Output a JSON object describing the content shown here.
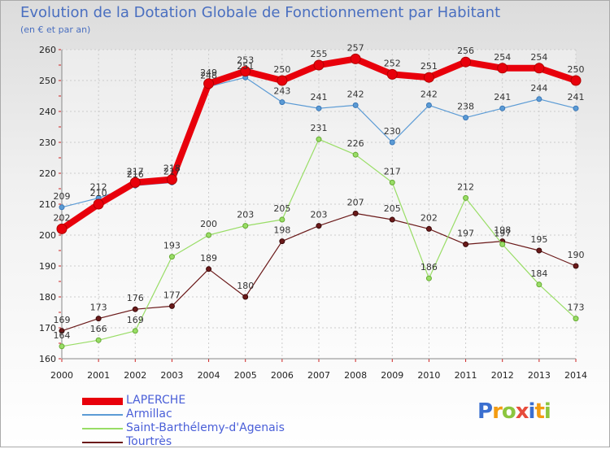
{
  "chart_data": {
    "type": "line",
    "title": "Evolution de la Dotation Globale de Fonctionnement par Habitant",
    "subtitle": "(en € et par an)",
    "xlabel": "",
    "ylabel": "",
    "x": [
      "2000",
      "2001",
      "2002",
      "2003",
      "2004",
      "2005",
      "2006",
      "2007",
      "2008",
      "2009",
      "2010",
      "2011",
      "2012",
      "2013",
      "2014"
    ],
    "ylim": [
      160,
      260
    ],
    "yticks": [
      160,
      170,
      180,
      190,
      200,
      210,
      220,
      230,
      240,
      250,
      260
    ],
    "grid": true,
    "legend_position": "bottom-left",
    "series": [
      {
        "name": "LAPERCHE",
        "color": "#e8000b",
        "values": [
          202,
          210,
          217,
          218,
          249,
          253,
          250,
          255,
          257,
          252,
          251,
          256,
          254,
          254,
          250
        ]
      },
      {
        "name": "Armillac",
        "color": "#5b9bd5",
        "values": [
          209,
          212,
          216,
          217,
          248,
          251,
          243,
          241,
          242,
          230,
          242,
          238,
          241,
          244,
          241
        ]
      },
      {
        "name": "Saint-Barthélemy-d'Agenais",
        "color": "#99dd66",
        "values": [
          164,
          166,
          169,
          193,
          200,
          203,
          205,
          231,
          226,
          217,
          186,
          212,
          197,
          184,
          173
        ]
      },
      {
        "name": "Tourtrès",
        "color": "#6b1a1a",
        "values": [
          169,
          173,
          176,
          177,
          189,
          180,
          198,
          203,
          207,
          205,
          202,
          197,
          198,
          195,
          190
        ]
      }
    ]
  },
  "logo": {
    "p": "P",
    "r": "r",
    "o": "o",
    "x": "x",
    "i": "i",
    "t": "t",
    "i2": "i"
  }
}
